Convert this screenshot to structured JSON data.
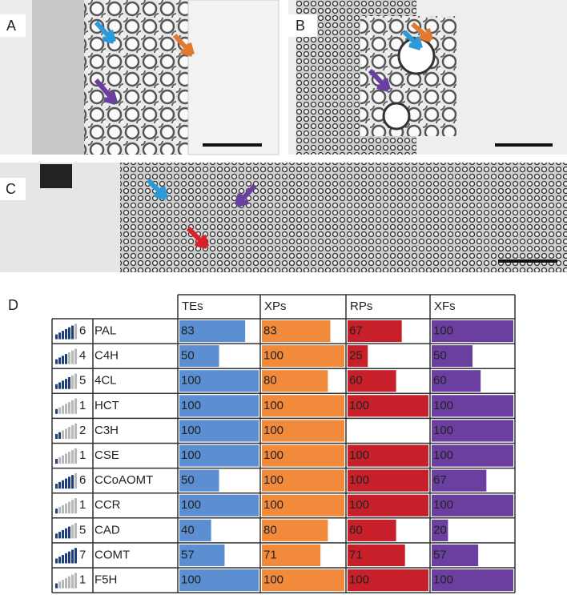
{
  "panels": {
    "a": "A",
    "b": "B",
    "c": "C",
    "d": "D"
  },
  "table": {
    "columns": [
      "TEs",
      "XPs",
      "RPs",
      "XFs"
    ],
    "colors": [
      "#5b8fd2",
      "#f28a3c",
      "#c8202a",
      "#6b3fa0"
    ],
    "rows": [
      {
        "count": 6,
        "gene": "PAL",
        "values": [
          83,
          83,
          67,
          100
        ]
      },
      {
        "count": 4,
        "gene": "C4H",
        "values": [
          50,
          100,
          25,
          50
        ]
      },
      {
        "count": 5,
        "gene": "4CL",
        "values": [
          100,
          80,
          60,
          60
        ]
      },
      {
        "count": 1,
        "gene": "HCT",
        "values": [
          100,
          100,
          100,
          100
        ]
      },
      {
        "count": 2,
        "gene": "C3H",
        "values": [
          100,
          100,
          null,
          100
        ]
      },
      {
        "count": 1,
        "gene": "CSE",
        "values": [
          100,
          100,
          100,
          100
        ]
      },
      {
        "count": 6,
        "gene": "CCoAOMT",
        "values": [
          50,
          100,
          100,
          67
        ]
      },
      {
        "count": 1,
        "gene": "CCR",
        "values": [
          100,
          100,
          100,
          100
        ]
      },
      {
        "count": 5,
        "gene": "CAD",
        "values": [
          40,
          80,
          60,
          20
        ]
      },
      {
        "count": 7,
        "gene": "COMT",
        "values": [
          57,
          71,
          71,
          57
        ]
      },
      {
        "count": 1,
        "gene": "F5H",
        "values": [
          100,
          100,
          100,
          100
        ]
      }
    ]
  }
}
